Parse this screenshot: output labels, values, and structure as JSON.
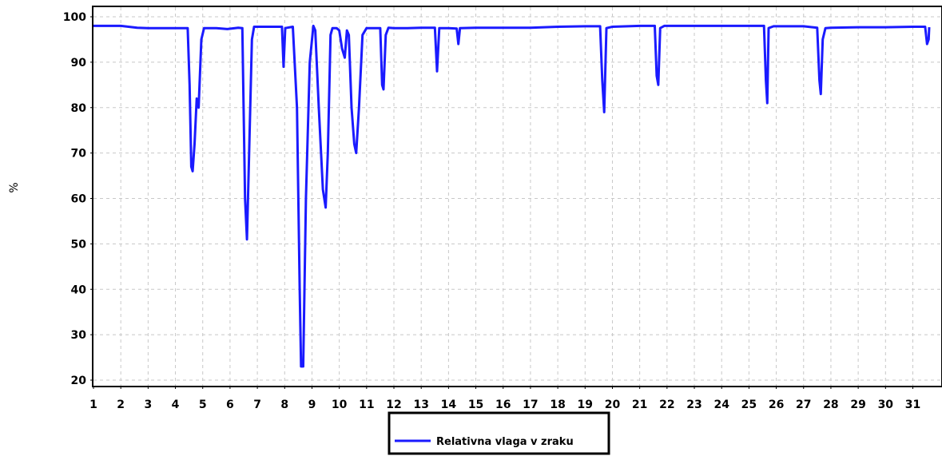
{
  "chart_data": {
    "type": "line",
    "title": "",
    "xlabel": "",
    "ylabel": "%",
    "xlim": [
      1,
      31.6
    ],
    "ylim": [
      20,
      100
    ],
    "xticks": [
      1,
      2,
      3,
      4,
      5,
      6,
      7,
      8,
      9,
      10,
      11,
      12,
      13,
      14,
      15,
      16,
      17,
      18,
      19,
      20,
      21,
      22,
      23,
      24,
      25,
      26,
      27,
      28,
      29,
      30,
      31
    ],
    "yticks": [
      20,
      30,
      40,
      50,
      60,
      70,
      80,
      90,
      100
    ],
    "grid": true,
    "legend_position": "bottom-center",
    "line_color": "#1a1aff",
    "series": [
      {
        "name": "Relativna vlaga v zraku",
        "points": [
          [
            1.0,
            98
          ],
          [
            2.0,
            98
          ],
          [
            2.6,
            97.6
          ],
          [
            3.0,
            97.5
          ],
          [
            4.0,
            97.5
          ],
          [
            4.45,
            97.5
          ],
          [
            4.52,
            85
          ],
          [
            4.58,
            67
          ],
          [
            4.63,
            66
          ],
          [
            4.7,
            72
          ],
          [
            4.78,
            82
          ],
          [
            4.85,
            80
          ],
          [
            4.95,
            95
          ],
          [
            5.05,
            97.5
          ],
          [
            5.5,
            97.5
          ],
          [
            5.9,
            97.3
          ],
          [
            6.3,
            97.6
          ],
          [
            6.45,
            97.5
          ],
          [
            6.55,
            60
          ],
          [
            6.62,
            51
          ],
          [
            6.7,
            70
          ],
          [
            6.8,
            95
          ],
          [
            6.88,
            97.8
          ],
          [
            7.5,
            97.8
          ],
          [
            7.9,
            97.8
          ],
          [
            7.96,
            89
          ],
          [
            8.02,
            97.5
          ],
          [
            8.3,
            97.8
          ],
          [
            8.45,
            80
          ],
          [
            8.55,
            40
          ],
          [
            8.6,
            23
          ],
          [
            8.68,
            23
          ],
          [
            8.78,
            60
          ],
          [
            8.92,
            90
          ],
          [
            9.05,
            98
          ],
          [
            9.12,
            97
          ],
          [
            9.25,
            80
          ],
          [
            9.4,
            62
          ],
          [
            9.5,
            58
          ],
          [
            9.58,
            70
          ],
          [
            9.68,
            96
          ],
          [
            9.75,
            97.5
          ],
          [
            9.9,
            97.5
          ],
          [
            10.0,
            97
          ],
          [
            10.1,
            93
          ],
          [
            10.2,
            91
          ],
          [
            10.28,
            97
          ],
          [
            10.35,
            96
          ],
          [
            10.45,
            80
          ],
          [
            10.55,
            72
          ],
          [
            10.62,
            70
          ],
          [
            10.72,
            80
          ],
          [
            10.85,
            96
          ],
          [
            11.0,
            97.5
          ],
          [
            11.5,
            97.5
          ],
          [
            11.57,
            85
          ],
          [
            11.62,
            84
          ],
          [
            11.7,
            96
          ],
          [
            11.8,
            97.6
          ],
          [
            12.0,
            97.5
          ],
          [
            12.5,
            97.5
          ],
          [
            13.0,
            97.6
          ],
          [
            13.5,
            97.6
          ],
          [
            13.58,
            88
          ],
          [
            13.66,
            97.5
          ],
          [
            14.0,
            97.5
          ],
          [
            14.3,
            97.4
          ],
          [
            14.36,
            94
          ],
          [
            14.42,
            97.5
          ],
          [
            15.0,
            97.6
          ],
          [
            16.0,
            97.6
          ],
          [
            17.0,
            97.6
          ],
          [
            18.0,
            97.8
          ],
          [
            19.0,
            97.9
          ],
          [
            19.55,
            97.9
          ],
          [
            19.63,
            86
          ],
          [
            19.7,
            79
          ],
          [
            19.78,
            97.5
          ],
          [
            20.0,
            97.8
          ],
          [
            21.0,
            98
          ],
          [
            21.55,
            98
          ],
          [
            21.62,
            87
          ],
          [
            21.68,
            85
          ],
          [
            21.75,
            97.5
          ],
          [
            21.9,
            98
          ],
          [
            22.0,
            98
          ],
          [
            23.0,
            98
          ],
          [
            24.0,
            98
          ],
          [
            25.0,
            98
          ],
          [
            25.55,
            98
          ],
          [
            25.62,
            86
          ],
          [
            25.67,
            81
          ],
          [
            25.72,
            97.5
          ],
          [
            25.9,
            97.9
          ],
          [
            26.0,
            97.9
          ],
          [
            27.0,
            97.9
          ],
          [
            27.5,
            97.6
          ],
          [
            27.58,
            86
          ],
          [
            27.63,
            83
          ],
          [
            27.7,
            95
          ],
          [
            27.8,
            97.5
          ],
          [
            28.0,
            97.6
          ],
          [
            29.0,
            97.7
          ],
          [
            30.0,
            97.7
          ],
          [
            31.0,
            97.8
          ],
          [
            31.45,
            97.8
          ],
          [
            31.52,
            94
          ],
          [
            31.58,
            95
          ],
          [
            31.6,
            97.7
          ]
        ]
      }
    ]
  }
}
